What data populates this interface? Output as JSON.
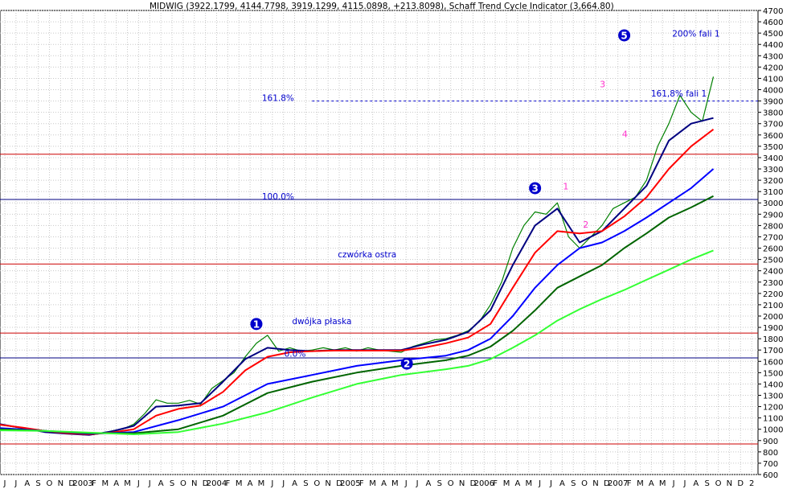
{
  "header": {
    "title": "MIDWIG (3922.1799, 4144.7798, 3919.1299, 4115.0898, +213.8098), Schaff Trend Cycle Indicator (3,664.80)"
  },
  "chart_data": {
    "type": "line",
    "title": "MIDWIG (3922.1799, 4144.7798, 3919.1299, 4115.0898, +213.8098), Schaff Trend Cycle Indicator (3,664.80)",
    "ylim": [
      600,
      4700
    ],
    "y_ticks": [
      600,
      700,
      800,
      900,
      1000,
      1100,
      1200,
      1300,
      1400,
      1500,
      1600,
      1700,
      1800,
      1900,
      2000,
      2100,
      2200,
      2300,
      2400,
      2500,
      2600,
      2700,
      2800,
      2900,
      3000,
      3100,
      3200,
      3300,
      3400,
      3500,
      3600,
      3700,
      3800,
      3900,
      4000,
      4100,
      4200,
      4300,
      4400,
      4500,
      4600,
      4700
    ],
    "x_labels": [
      "J",
      "J",
      "A",
      "S",
      "O",
      "N",
      "D",
      "2003",
      "F",
      "M",
      "A",
      "M",
      "J",
      "J",
      "A",
      "S",
      "O",
      "N",
      "D",
      "2004",
      "F",
      "M",
      "A",
      "M",
      "J",
      "J",
      "A",
      "S",
      "O",
      "N",
      "D",
      "2005",
      "F",
      "M",
      "A",
      "M",
      "J",
      "J",
      "A",
      "S",
      "O",
      "N",
      "D",
      "2006",
      "F",
      "M",
      "A",
      "M",
      "J",
      "J",
      "A",
      "S",
      "O",
      "N",
      "D",
      "2007",
      "F",
      "M",
      "A",
      "M",
      "J",
      "J",
      "A",
      "S",
      "O",
      "N",
      "D",
      "2"
    ],
    "x_domain": [
      0,
      68
    ],
    "grid": true,
    "series": [
      {
        "color": "#008000",
        "points": [
          [
            0,
            1040
          ],
          [
            2,
            1010
          ],
          [
            4,
            975
          ],
          [
            6,
            960
          ],
          [
            8,
            950
          ],
          [
            9,
            960
          ],
          [
            10,
            985
          ],
          [
            11,
            1000
          ],
          [
            12,
            1045
          ],
          [
            13,
            1140
          ],
          [
            14,
            1260
          ],
          [
            15,
            1230
          ],
          [
            16,
            1230
          ],
          [
            17,
            1255
          ],
          [
            18,
            1220
          ],
          [
            19,
            1360
          ],
          [
            20,
            1430
          ],
          [
            21,
            1500
          ],
          [
            22,
            1640
          ],
          [
            23,
            1760
          ],
          [
            24,
            1830
          ],
          [
            25,
            1690
          ],
          [
            26,
            1720
          ],
          [
            27,
            1690
          ],
          [
            28,
            1700
          ],
          [
            29,
            1720
          ],
          [
            30,
            1700
          ],
          [
            31,
            1720
          ],
          [
            32,
            1690
          ],
          [
            33,
            1720
          ],
          [
            34,
            1700
          ],
          [
            35,
            1690
          ],
          [
            36,
            1680
          ],
          [
            37,
            1730
          ],
          [
            38,
            1760
          ],
          [
            39,
            1790
          ],
          [
            40,
            1800
          ],
          [
            41,
            1830
          ],
          [
            42,
            1870
          ],
          [
            43,
            1950
          ],
          [
            44,
            2100
          ],
          [
            45,
            2300
          ],
          [
            46,
            2600
          ],
          [
            47,
            2800
          ],
          [
            48,
            2920
          ],
          [
            49,
            2900
          ],
          [
            50,
            3000
          ],
          [
            51,
            2700
          ],
          [
            52,
            2600
          ],
          [
            53,
            2700
          ],
          [
            54,
            2800
          ],
          [
            55,
            2950
          ],
          [
            56,
            3000
          ],
          [
            57,
            3050
          ],
          [
            58,
            3200
          ],
          [
            59,
            3500
          ],
          [
            60,
            3700
          ],
          [
            61,
            3950
          ],
          [
            62,
            3800
          ],
          [
            63,
            3720
          ],
          [
            64,
            4115
          ]
        ]
      },
      {
        "color": "#000080",
        "points": [
          [
            0,
            1045
          ],
          [
            2,
            1010
          ],
          [
            4,
            975
          ],
          [
            6,
            960
          ],
          [
            8,
            950
          ],
          [
            10,
            980
          ],
          [
            12,
            1030
          ],
          [
            14,
            1200
          ],
          [
            16,
            1210
          ],
          [
            18,
            1230
          ],
          [
            20,
            1420
          ],
          [
            22,
            1620
          ],
          [
            24,
            1720
          ],
          [
            26,
            1700
          ],
          [
            28,
            1690
          ],
          [
            30,
            1700
          ],
          [
            32,
            1700
          ],
          [
            34,
            1700
          ],
          [
            36,
            1700
          ],
          [
            38,
            1750
          ],
          [
            40,
            1790
          ],
          [
            42,
            1860
          ],
          [
            44,
            2050
          ],
          [
            46,
            2450
          ],
          [
            48,
            2800
          ],
          [
            50,
            2950
          ],
          [
            52,
            2650
          ],
          [
            54,
            2750
          ],
          [
            56,
            2950
          ],
          [
            58,
            3150
          ],
          [
            60,
            3550
          ],
          [
            62,
            3700
          ],
          [
            64,
            3750
          ]
        ]
      },
      {
        "color": "#ff0000",
        "points": [
          [
            0,
            1040
          ],
          [
            2,
            1015
          ],
          [
            4,
            985
          ],
          [
            6,
            965
          ],
          [
            8,
            955
          ],
          [
            10,
            970
          ],
          [
            12,
            1000
          ],
          [
            14,
            1120
          ],
          [
            16,
            1180
          ],
          [
            18,
            1210
          ],
          [
            20,
            1330
          ],
          [
            22,
            1520
          ],
          [
            24,
            1640
          ],
          [
            26,
            1680
          ],
          [
            28,
            1690
          ],
          [
            30,
            1695
          ],
          [
            32,
            1695
          ],
          [
            34,
            1695
          ],
          [
            36,
            1695
          ],
          [
            38,
            1720
          ],
          [
            40,
            1760
          ],
          [
            42,
            1810
          ],
          [
            44,
            1930
          ],
          [
            46,
            2250
          ],
          [
            48,
            2560
          ],
          [
            50,
            2750
          ],
          [
            52,
            2730
          ],
          [
            54,
            2750
          ],
          [
            56,
            2880
          ],
          [
            58,
            3050
          ],
          [
            60,
            3300
          ],
          [
            62,
            3500
          ],
          [
            64,
            3650
          ]
        ]
      },
      {
        "color": "#0000ff",
        "points": [
          [
            0,
            1010
          ],
          [
            4,
            985
          ],
          [
            8,
            960
          ],
          [
            12,
            975
          ],
          [
            16,
            1080
          ],
          [
            20,
            1200
          ],
          [
            24,
            1400
          ],
          [
            28,
            1480
          ],
          [
            32,
            1560
          ],
          [
            36,
            1610
          ],
          [
            40,
            1650
          ],
          [
            42,
            1700
          ],
          [
            44,
            1800
          ],
          [
            46,
            2000
          ],
          [
            48,
            2250
          ],
          [
            50,
            2450
          ],
          [
            52,
            2600
          ],
          [
            54,
            2650
          ],
          [
            56,
            2750
          ],
          [
            58,
            2870
          ],
          [
            60,
            3000
          ],
          [
            62,
            3130
          ],
          [
            64,
            3300
          ]
        ]
      },
      {
        "color": "#006400",
        "points": [
          [
            0,
            1000
          ],
          [
            4,
            985
          ],
          [
            8,
            965
          ],
          [
            12,
            965
          ],
          [
            16,
            1000
          ],
          [
            20,
            1120
          ],
          [
            24,
            1320
          ],
          [
            28,
            1420
          ],
          [
            32,
            1500
          ],
          [
            36,
            1560
          ],
          [
            40,
            1610
          ],
          [
            42,
            1650
          ],
          [
            44,
            1730
          ],
          [
            46,
            1870
          ],
          [
            48,
            2050
          ],
          [
            50,
            2250
          ],
          [
            52,
            2350
          ],
          [
            54,
            2450
          ],
          [
            56,
            2600
          ],
          [
            58,
            2730
          ],
          [
            60,
            2870
          ],
          [
            62,
            2960
          ],
          [
            64,
            3060
          ]
        ]
      },
      {
        "color": "#33ff33",
        "points": [
          [
            0,
            990
          ],
          [
            4,
            985
          ],
          [
            8,
            970
          ],
          [
            12,
            955
          ],
          [
            16,
            975
          ],
          [
            20,
            1050
          ],
          [
            24,
            1150
          ],
          [
            28,
            1280
          ],
          [
            32,
            1400
          ],
          [
            36,
            1480
          ],
          [
            40,
            1530
          ],
          [
            42,
            1560
          ],
          [
            44,
            1620
          ],
          [
            46,
            1720
          ],
          [
            48,
            1830
          ],
          [
            50,
            1960
          ],
          [
            52,
            2060
          ],
          [
            54,
            2150
          ],
          [
            56,
            2230
          ],
          [
            58,
            2320
          ],
          [
            60,
            2410
          ],
          [
            62,
            2500
          ],
          [
            64,
            2580
          ]
        ]
      }
    ],
    "hlines": [
      {
        "y": 3430,
        "color": "#cc0000"
      },
      {
        "y": 2460,
        "color": "#cc0000"
      },
      {
        "y": 1850,
        "color": "#cc0000"
      },
      {
        "y": 870,
        "color": "#cc0000"
      },
      {
        "y": 3030,
        "color": "#000080"
      },
      {
        "y": 1630,
        "color": "#000080"
      },
      {
        "y": 3900,
        "color": "#0000cc",
        "dashed": true,
        "from": 28
      }
    ],
    "annotations": {
      "texts": [
        {
          "text": "161.8%",
          "x": 23.5,
          "y": 3900,
          "color": "#0000cc"
        },
        {
          "text": "100.0%",
          "x": 23.5,
          "y": 3030,
          "color": "#0000cc"
        },
        {
          "text": "0.0%",
          "x": 25.5,
          "y": 1640,
          "color": "#0000cc"
        },
        {
          "text": "czwórka ostra",
          "x": 30.3,
          "y": 2520,
          "color": "#0000cc"
        },
        {
          "text": "dwójka płaska",
          "x": 26.2,
          "y": 1930,
          "color": "#0000cc"
        },
        {
          "text": "200% fali 1",
          "x": 60.3,
          "y": 4470,
          "color": "#0000cc"
        },
        {
          "text": "161,8% fali 1",
          "x": 58.4,
          "y": 3940,
          "color": "#0000cc"
        }
      ],
      "wave_labels": [
        {
          "text": "1",
          "x": 23,
          "y": 1930,
          "color": "#0000cc"
        },
        {
          "text": "2",
          "x": 36.5,
          "y": 1580,
          "color": "#0000cc"
        },
        {
          "text": "3",
          "x": 48,
          "y": 3130,
          "color": "#0000cc"
        },
        {
          "text": "5",
          "x": 56,
          "y": 4480,
          "color": "#0000cc"
        }
      ],
      "minor_labels": [
        {
          "text": "1",
          "x": 50.5,
          "y": 3120,
          "color": "#ff33cc"
        },
        {
          "text": "2",
          "x": 52.3,
          "y": 2780,
          "color": "#ff33cc"
        },
        {
          "text": "3",
          "x": 53.8,
          "y": 4020,
          "color": "#ff33cc"
        },
        {
          "text": "4",
          "x": 55.8,
          "y": 3580,
          "color": "#ff33cc"
        }
      ]
    }
  }
}
